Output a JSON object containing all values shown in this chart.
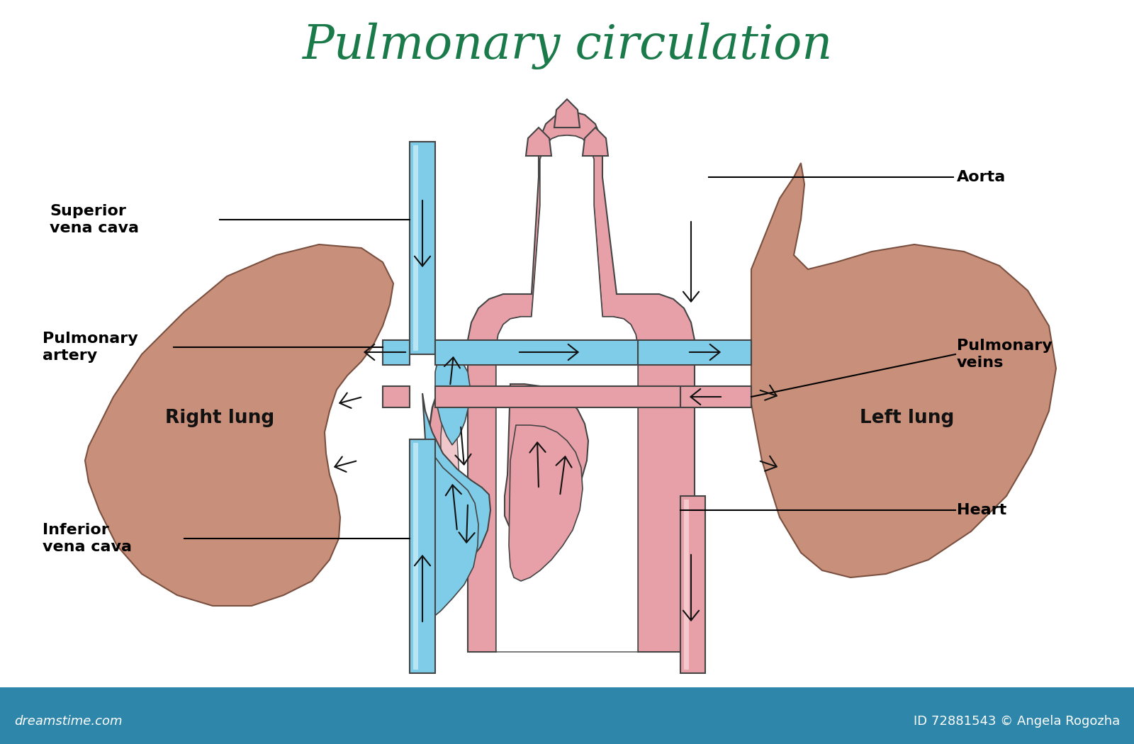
{
  "title": "Pulmonary circulation",
  "title_color": "#1a7a4a",
  "title_fontsize": 48,
  "bg_color": "#ffffff",
  "lung_fill": "#c8907a",
  "lung_fill2": "#d4a090",
  "lung_edge": "#7a5040",
  "vessel_blue": "#7ecce8",
  "vessel_blue_light": "#b8e4f4",
  "vessel_pink": "#e8a0a8",
  "vessel_pink_light": "#f4c8cc",
  "vessel_edge": "#444444",
  "heart_fill": "#e8a0a8",
  "heart_fill_light": "#f0c8cc",
  "arrow_color": "#111111",
  "label_color": "#000000",
  "label_fontsize": 16,
  "lung_label_fontsize": 19,
  "footer_bg": "#2e86ab",
  "footer_text_color": "#ffffff",
  "labels": {
    "superior_vena_cava": "Superior\nvena cava",
    "pulmonary_artery": "Pulmonary\nartery",
    "inferior_vena_cava": "Inferior\nvena cava",
    "aorta": "Aorta",
    "pulmonary_veins": "Pulmonary\nveins",
    "heart": "Heart",
    "right_lung": "Right lung",
    "left_lung": "Left lung"
  },
  "footer_left": "dreamstime.com",
  "footer_right": "ID 72881543 © Angela Rogozha"
}
